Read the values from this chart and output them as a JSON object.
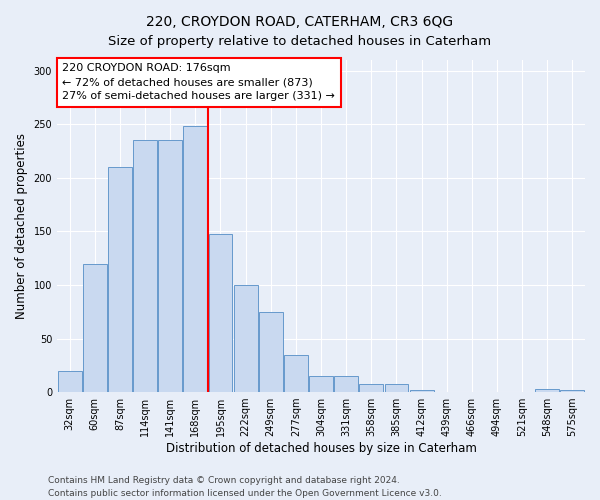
{
  "title": "220, CROYDON ROAD, CATERHAM, CR3 6QG",
  "subtitle": "Size of property relative to detached houses in Caterham",
  "xlabel": "Distribution of detached houses by size in Caterham",
  "ylabel": "Number of detached properties",
  "bar_color": "#c9d9f0",
  "bar_edge_color": "#6699cc",
  "categories": [
    "32sqm",
    "60sqm",
    "87sqm",
    "114sqm",
    "141sqm",
    "168sqm",
    "195sqm",
    "222sqm",
    "249sqm",
    "277sqm",
    "304sqm",
    "331sqm",
    "358sqm",
    "385sqm",
    "412sqm",
    "439sqm",
    "466sqm",
    "494sqm",
    "521sqm",
    "548sqm",
    "575sqm"
  ],
  "values": [
    20,
    120,
    210,
    235,
    235,
    248,
    148,
    100,
    75,
    35,
    15,
    15,
    8,
    8,
    2,
    0,
    0,
    0,
    0,
    3,
    2
  ],
  "ylim": [
    0,
    310
  ],
  "yticks": [
    0,
    50,
    100,
    150,
    200,
    250,
    300
  ],
  "property_line_x": 5.5,
  "annotation_label": "220 CROYDON ROAD: 176sqm",
  "annotation_line1": "← 72% of detached houses are smaller (873)",
  "annotation_line2": "27% of semi-detached houses are larger (331) →",
  "footnote1": "Contains HM Land Registry data © Crown copyright and database right 2024.",
  "footnote2": "Contains public sector information licensed under the Open Government Licence v3.0.",
  "background_color": "#e8eef8",
  "plot_bg_color": "#e8eef8",
  "grid_color": "#ffffff",
  "title_fontsize": 10,
  "xlabel_fontsize": 8.5,
  "ylabel_fontsize": 8.5,
  "tick_fontsize": 7,
  "annot_fontsize": 8,
  "footnote_fontsize": 6.5
}
